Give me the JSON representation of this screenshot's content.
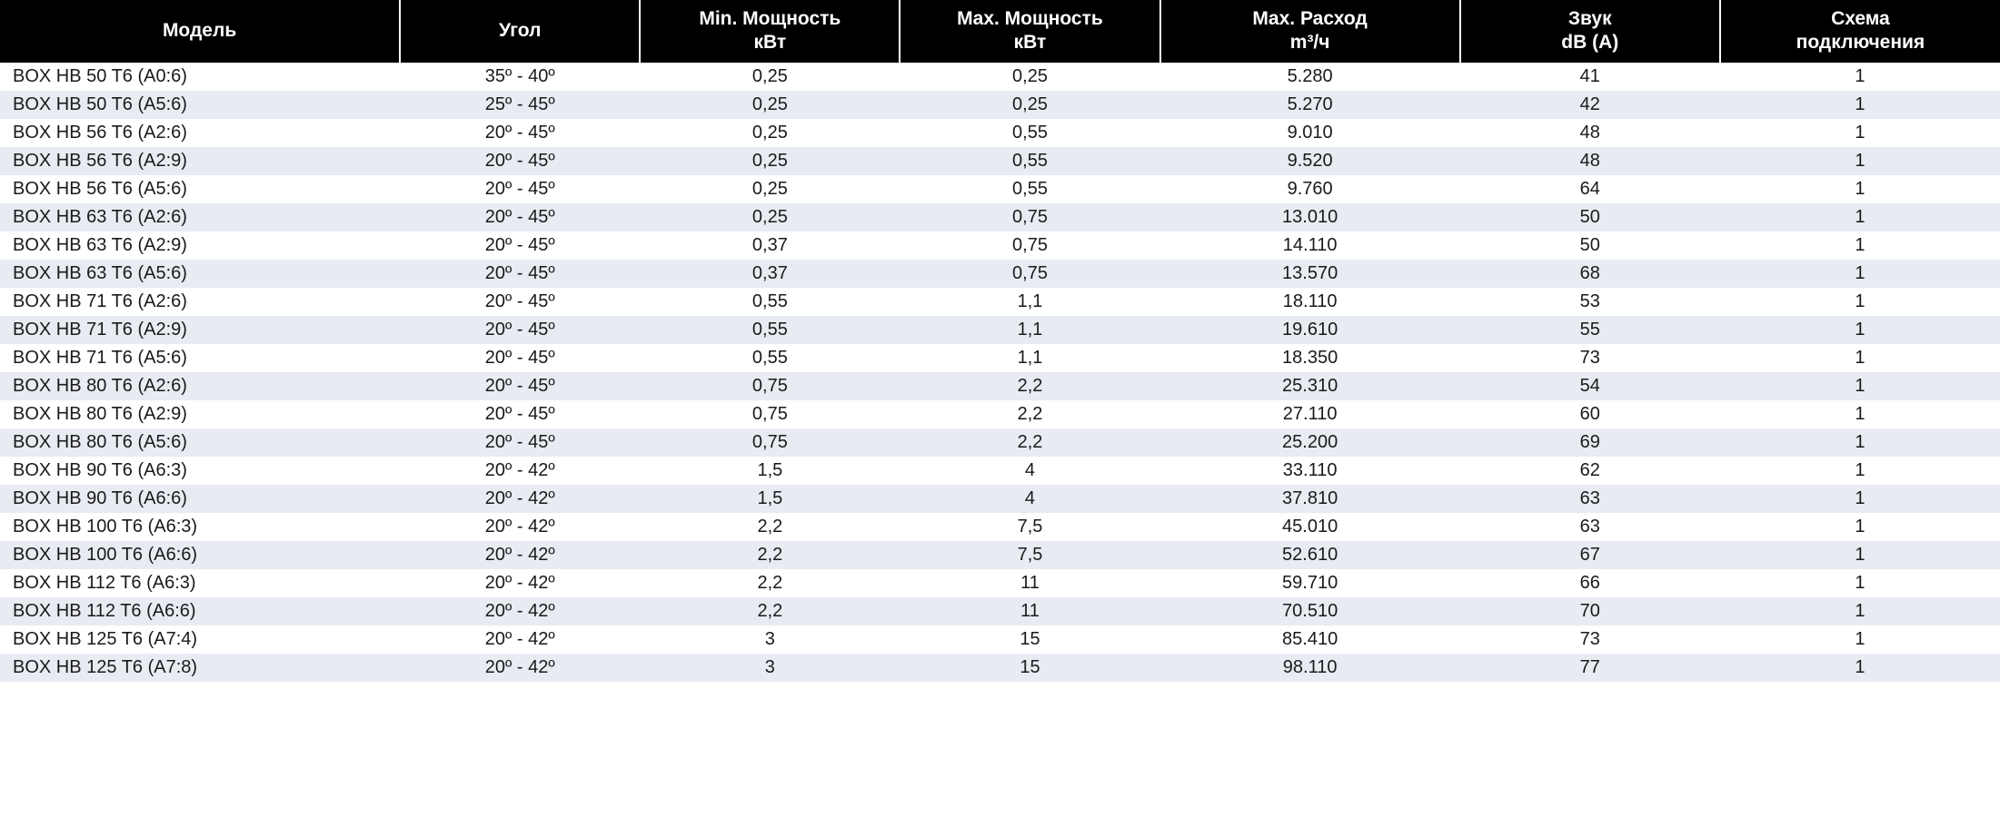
{
  "table": {
    "columns": [
      {
        "key": "model",
        "label": "Модель",
        "class": "col-model"
      },
      {
        "key": "angle",
        "label": "Угол",
        "class": "col-angle"
      },
      {
        "key": "min",
        "label": "Min. Мощность\nкВт",
        "class": "col-min"
      },
      {
        "key": "max",
        "label": "Max. Мощность\nкВт",
        "class": "col-max"
      },
      {
        "key": "flow",
        "label": "Max. Расход\nm³/ч",
        "class": "col-flow"
      },
      {
        "key": "sound",
        "label": "Звук\ndB (A)",
        "class": "col-sound"
      },
      {
        "key": "scheme",
        "label": "Схема\nподключения",
        "class": "col-scheme"
      }
    ],
    "rows": [
      {
        "model": "BOX HB 50 T6 (A0:6)",
        "angle": "35º - 40º",
        "min": "0,25",
        "max": "0,25",
        "flow": "5.280",
        "sound": "41",
        "scheme": "1"
      },
      {
        "model": "BOX HB 50 T6 (A5:6)",
        "angle": "25º - 45º",
        "min": "0,25",
        "max": "0,25",
        "flow": "5.270",
        "sound": "42",
        "scheme": "1"
      },
      {
        "model": "BOX HB 56 T6 (A2:6)",
        "angle": "20º - 45º",
        "min": "0,25",
        "max": "0,55",
        "flow": "9.010",
        "sound": "48",
        "scheme": "1"
      },
      {
        "model": "BOX HB 56 T6 (A2:9)",
        "angle": "20º - 45º",
        "min": "0,25",
        "max": "0,55",
        "flow": "9.520",
        "sound": "48",
        "scheme": "1"
      },
      {
        "model": "BOX HB 56 T6 (A5:6)",
        "angle": "20º - 45º",
        "min": "0,25",
        "max": "0,55",
        "flow": "9.760",
        "sound": "64",
        "scheme": "1"
      },
      {
        "model": "BOX HB 63 T6 (A2:6)",
        "angle": "20º - 45º",
        "min": "0,25",
        "max": "0,75",
        "flow": "13.010",
        "sound": "50",
        "scheme": "1"
      },
      {
        "model": "BOX HB 63 T6 (A2:9)",
        "angle": "20º - 45º",
        "min": "0,37",
        "max": "0,75",
        "flow": "14.110",
        "sound": "50",
        "scheme": "1"
      },
      {
        "model": "BOX HB 63 T6 (A5:6)",
        "angle": "20º - 45º",
        "min": "0,37",
        "max": "0,75",
        "flow": "13.570",
        "sound": "68",
        "scheme": "1"
      },
      {
        "model": "BOX HB 71 T6 (A2:6)",
        "angle": "20º - 45º",
        "min": "0,55",
        "max": "1,1",
        "flow": "18.110",
        "sound": "53",
        "scheme": "1"
      },
      {
        "model": "BOX HB 71 T6 (A2:9)",
        "angle": "20º - 45º",
        "min": "0,55",
        "max": "1,1",
        "flow": "19.610",
        "sound": "55",
        "scheme": "1"
      },
      {
        "model": "BOX HB 71 T6 (A5:6)",
        "angle": "20º - 45º",
        "min": "0,55",
        "max": "1,1",
        "flow": "18.350",
        "sound": "73",
        "scheme": "1"
      },
      {
        "model": "BOX HB 80 T6 (A2:6)",
        "angle": "20º - 45º",
        "min": "0,75",
        "max": "2,2",
        "flow": "25.310",
        "sound": "54",
        "scheme": "1"
      },
      {
        "model": "BOX HB 80 T6 (A2:9)",
        "angle": "20º - 45º",
        "min": "0,75",
        "max": "2,2",
        "flow": "27.110",
        "sound": "60",
        "scheme": "1"
      },
      {
        "model": "BOX HB 80 T6 (A5:6)",
        "angle": "20º - 45º",
        "min": "0,75",
        "max": "2,2",
        "flow": "25.200",
        "sound": "69",
        "scheme": "1"
      },
      {
        "model": "BOX HB 90 T6 (A6:3)",
        "angle": "20º - 42º",
        "min": "1,5",
        "max": "4",
        "flow": "33.110",
        "sound": "62",
        "scheme": "1"
      },
      {
        "model": "BOX HB 90 T6 (A6:6)",
        "angle": "20º - 42º",
        "min": "1,5",
        "max": "4",
        "flow": "37.810",
        "sound": "63",
        "scheme": "1"
      },
      {
        "model": "BOX HB 100 T6 (A6:3)",
        "angle": "20º - 42º",
        "min": "2,2",
        "max": "7,5",
        "flow": "45.010",
        "sound": "63",
        "scheme": "1"
      },
      {
        "model": "BOX HB 100 T6 (A6:6)",
        "angle": "20º - 42º",
        "min": "2,2",
        "max": "7,5",
        "flow": "52.610",
        "sound": "67",
        "scheme": "1"
      },
      {
        "model": "BOX HB 112 T6 (A6:3)",
        "angle": "20º - 42º",
        "min": "2,2",
        "max": "11",
        "flow": "59.710",
        "sound": "66",
        "scheme": "1"
      },
      {
        "model": "BOX HB 112 T6 (A6:6)",
        "angle": "20º - 42º",
        "min": "2,2",
        "max": "11",
        "flow": "70.510",
        "sound": "70",
        "scheme": "1"
      },
      {
        "model": "BOX HB 125 T6 (A7:4)",
        "angle": "20º - 42º",
        "min": "3",
        "max": "15",
        "flow": "85.410",
        "sound": "73",
        "scheme": "1"
      },
      {
        "model": "BOX HB 125 T6 (A7:8)",
        "angle": "20º - 42º",
        "min": "3",
        "max": "15",
        "flow": "98.110",
        "sound": "77",
        "scheme": "1"
      }
    ],
    "header_bg": "#000000",
    "header_fg": "#ffffff",
    "row_odd_bg": "#ffffff",
    "row_even_bg": "#e8ebf2",
    "text_color": "#1a1a1a",
    "header_fontsize": 21,
    "body_fontsize": 20
  }
}
